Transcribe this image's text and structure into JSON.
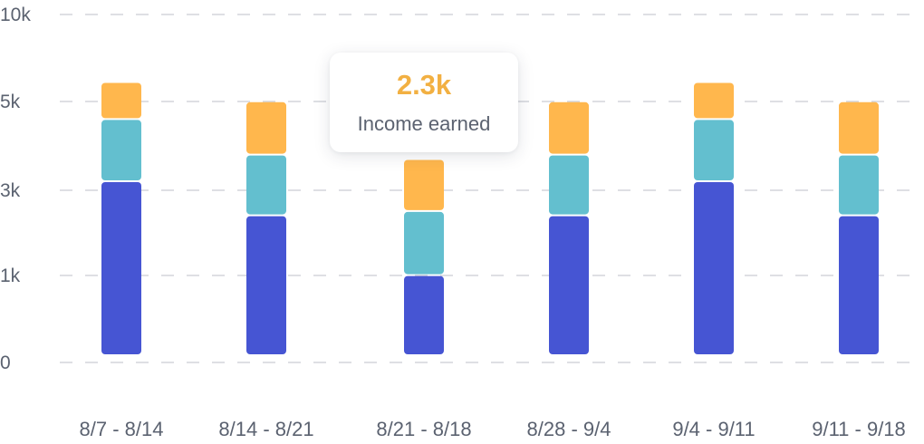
{
  "chart_data": {
    "type": "bar",
    "stacked": true,
    "categories": [
      "8/7 - 8/14",
      "8/14 - 8/21",
      "8/21 - 8/18",
      "8/28 - 9/4",
      "9/4 - 9/11",
      "9/11 - 9/18"
    ],
    "y_ticks": [
      {
        "value": 0,
        "label": "0"
      },
      {
        "value": 1,
        "label": "1k"
      },
      {
        "value": 3,
        "label": "3k"
      },
      {
        "value": 5,
        "label": "5k"
      },
      {
        "value": 10,
        "label": "10k"
      }
    ],
    "series": [
      {
        "color": "#4655d3",
        "values": [
          3.0,
          2.2,
          0.9,
          2.2,
          3.0,
          2.2
        ]
      },
      {
        "color": "#63bfcf",
        "values": [
          1.4,
          1.4,
          1.4,
          1.4,
          1.4,
          1.4
        ]
      },
      {
        "color": "#ffb74d",
        "values": [
          1.2,
          1.2,
          1.2,
          1.2,
          1.2,
          1.2
        ]
      }
    ],
    "grid": true,
    "tooltip": {
      "category_index": 2,
      "value": "2.3k",
      "label": "Income earned",
      "value_color": "#f2b042"
    }
  }
}
